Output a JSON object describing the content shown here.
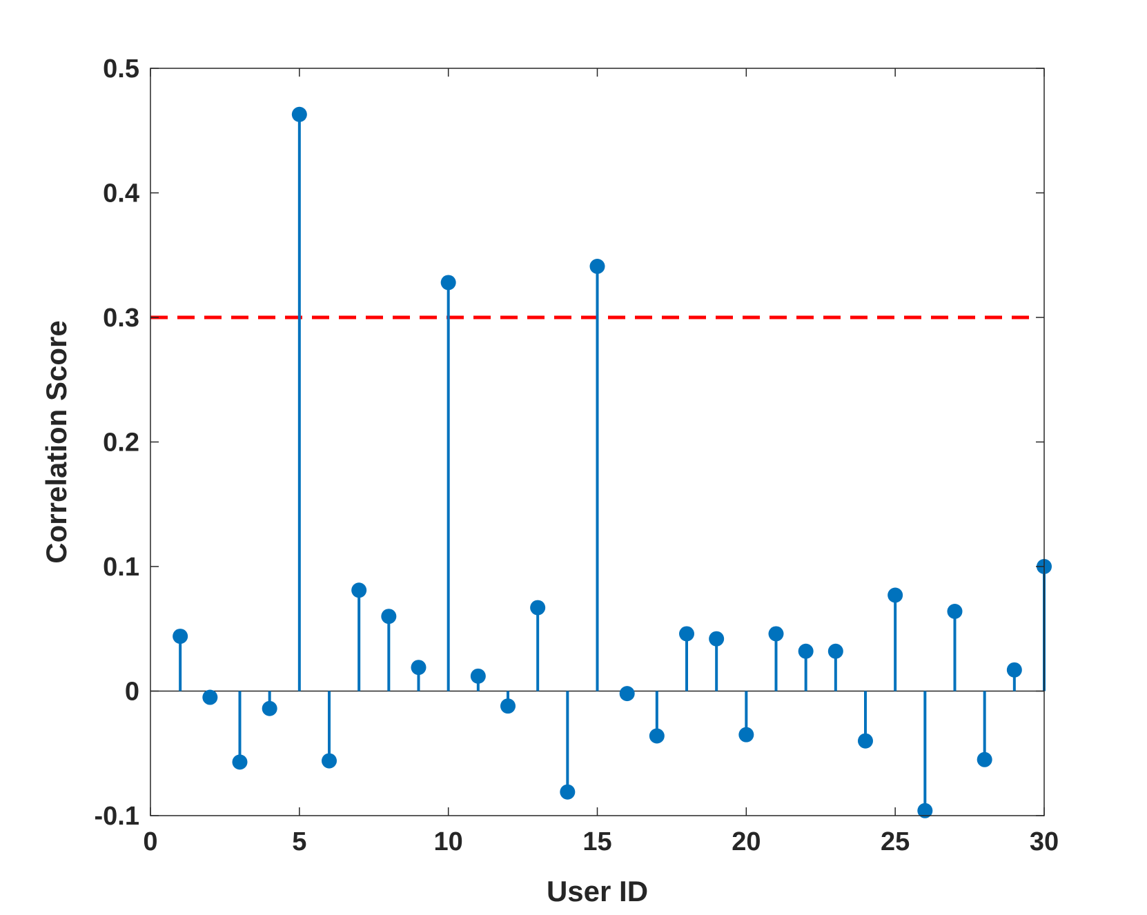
{
  "chart_data": {
    "type": "stem",
    "title": "",
    "xlabel": "User ID",
    "ylabel": "Correlation Score",
    "xlim": [
      0,
      30
    ],
    "ylim": [
      -0.1,
      0.5
    ],
    "xticks": [
      "0",
      "5",
      "10",
      "15",
      "20",
      "25",
      "30"
    ],
    "yticks": [
      "-0.1",
      "0",
      "0.1",
      "0.2",
      "0.3",
      "0.4",
      "0.5"
    ],
    "grid": false,
    "series": [
      {
        "x": [
          1,
          2,
          3,
          4,
          5,
          6,
          7,
          8,
          9,
          10,
          11,
          12,
          13,
          14,
          15,
          16,
          17,
          18,
          19,
          20,
          21,
          22,
          23,
          24,
          25,
          26,
          27,
          28,
          29,
          30
        ],
        "values": [
          0.044,
          -0.005,
          -0.057,
          -0.014,
          0.463,
          -0.056,
          0.081,
          0.06,
          0.019,
          0.328,
          0.012,
          -0.012,
          0.067,
          -0.081,
          0.341,
          -0.002,
          -0.036,
          0.046,
          0.042,
          -0.035,
          0.046,
          0.032,
          0.032,
          -0.04,
          0.077,
          -0.096,
          0.064,
          -0.055,
          0.017,
          0.1
        ],
        "color": "#0072BD"
      }
    ],
    "threshold": {
      "value": 0.3,
      "color": "#FF0000",
      "style": "dashed"
    },
    "axis_color": "#262626"
  }
}
